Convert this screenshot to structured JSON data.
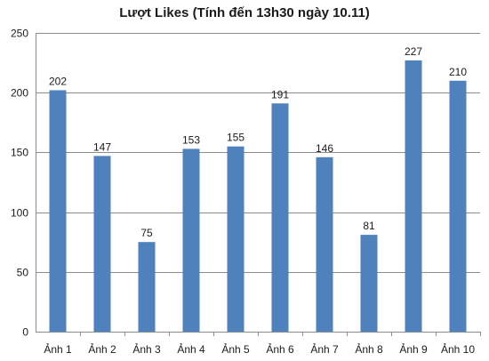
{
  "chart_data": {
    "type": "bar",
    "title": "Lượt Likes (Tính đến 13h30 ngày 10.11)",
    "xlabel": "",
    "ylabel": "",
    "categories": [
      "Ảnh 1",
      "Ảnh 2",
      "Ảnh 3",
      "Ảnh 4",
      "Ảnh 5",
      "Ảnh 6",
      "Ảnh 7",
      "Ảnh 8",
      "Ảnh 9",
      "Ảnh 10"
    ],
    "values": [
      202,
      147,
      75,
      153,
      155,
      191,
      146,
      81,
      227,
      210
    ],
    "ylim": [
      0,
      250
    ],
    "yticks": [
      0,
      50,
      100,
      150,
      200,
      250
    ],
    "grid": true,
    "legend": "none",
    "data_labels": true,
    "bar_color": "#4f81bd",
    "grid_color": "#8c8c8c"
  }
}
